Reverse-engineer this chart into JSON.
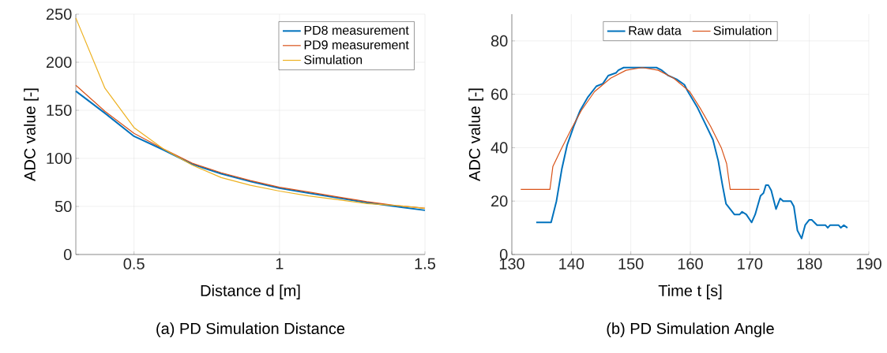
{
  "chart_data": [
    {
      "type": "line",
      "title": "(a) PD Simulation Distance",
      "xlabel": "Distance d [m]",
      "ylabel": "ADC value [-]",
      "x": [
        0.3,
        0.4,
        0.5,
        0.6,
        0.7,
        0.8,
        0.9,
        1.0,
        1.1,
        1.2,
        1.3,
        1.4,
        1.5
      ],
      "series": [
        {
          "name": "PD8 measurement",
          "color": "#0072bd",
          "values": [
            170,
            147,
            123,
            109,
            94,
            84,
            76,
            69,
            64,
            59,
            54,
            50,
            46
          ]
        },
        {
          "name": "PD9 measurement",
          "color": "#d95319",
          "values": [
            176,
            149,
            126,
            110,
            95,
            85,
            77,
            70,
            65,
            60,
            55,
            51,
            48
          ]
        },
        {
          "name": "Simulation",
          "color": "#edb120",
          "values": [
            246,
            173,
            132,
            110,
            93,
            80,
            72,
            66,
            61,
            57,
            53,
            51,
            48
          ]
        }
      ],
      "xlim": [
        0.3,
        1.5
      ],
      "ylim": [
        0,
        250
      ],
      "xticks": [
        0.5,
        1,
        1.5
      ],
      "yticks": [
        0,
        50,
        100,
        150,
        200,
        250
      ],
      "grid": true,
      "legend": "top right",
      "marker": "none",
      "line_style": "solid"
    },
    {
      "type": "line",
      "title": "(b) PD Simulation Angle",
      "xlabel": "Time t [s]",
      "ylabel": "ADC value [-]",
      "series": [
        {
          "name": "Raw data",
          "color": "#0072bd",
          "x": [
            134.1,
            136.6,
            137.5,
            138.4,
            139.3,
            140.4,
            141.5,
            142.8,
            144.2,
            145.3,
            146.2,
            147.5,
            147.9,
            148.8,
            154.3,
            155.2,
            156.3,
            157.7,
            159,
            159.6,
            161.2,
            162.5,
            163.8,
            164.7,
            165.4,
            166,
            166.7,
            167.4,
            168.3,
            168.7,
            169.4,
            170.3,
            170.9,
            171.8,
            172.3,
            172.7,
            173.1,
            173.6,
            174.4,
            175.1,
            175.6,
            176.9,
            177.4,
            178,
            178.7,
            179.3,
            180,
            180.4,
            181.3,
            182.7,
            183.1,
            183.5,
            184.9,
            185.3,
            185.8,
            186.4
          ],
          "values": [
            12,
            12,
            20,
            32,
            41,
            48,
            54,
            59,
            63,
            64,
            67,
            68,
            69,
            70,
            70,
            69,
            67,
            65.6,
            63.6,
            61,
            55,
            49,
            43,
            35,
            26,
            19,
            17,
            15,
            15,
            16,
            15,
            12,
            15,
            22,
            23,
            26,
            26,
            24,
            17,
            21,
            20,
            20,
            18,
            9,
            6,
            11,
            13,
            13,
            11,
            11,
            10,
            11,
            11,
            10,
            11,
            10
          ]
        },
        {
          "name": "Simulation",
          "color": "#d95319",
          "x": [
            131.5,
            136.4,
            136.9,
            138.2,
            140.0,
            141.7,
            143.9,
            146.6,
            149.2,
            151.9,
            154.6,
            157.2,
            159.9,
            161.6,
            163.4,
            165.2,
            166.1,
            166.7,
            171.6
          ],
          "values": [
            24.4,
            24.4,
            33,
            39,
            47,
            54,
            61,
            66,
            69,
            70,
            69,
            66,
            61,
            55,
            48,
            40,
            34,
            24.4,
            24.4
          ]
        }
      ],
      "xlim": [
        130,
        190
      ],
      "ylim": [
        0,
        90
      ],
      "xticks": [
        130,
        140,
        150,
        160,
        170,
        180,
        190
      ],
      "yticks": [
        0,
        20,
        40,
        60,
        80
      ],
      "grid": true,
      "legend": "top",
      "marker": "none",
      "line_style": "solid"
    }
  ]
}
